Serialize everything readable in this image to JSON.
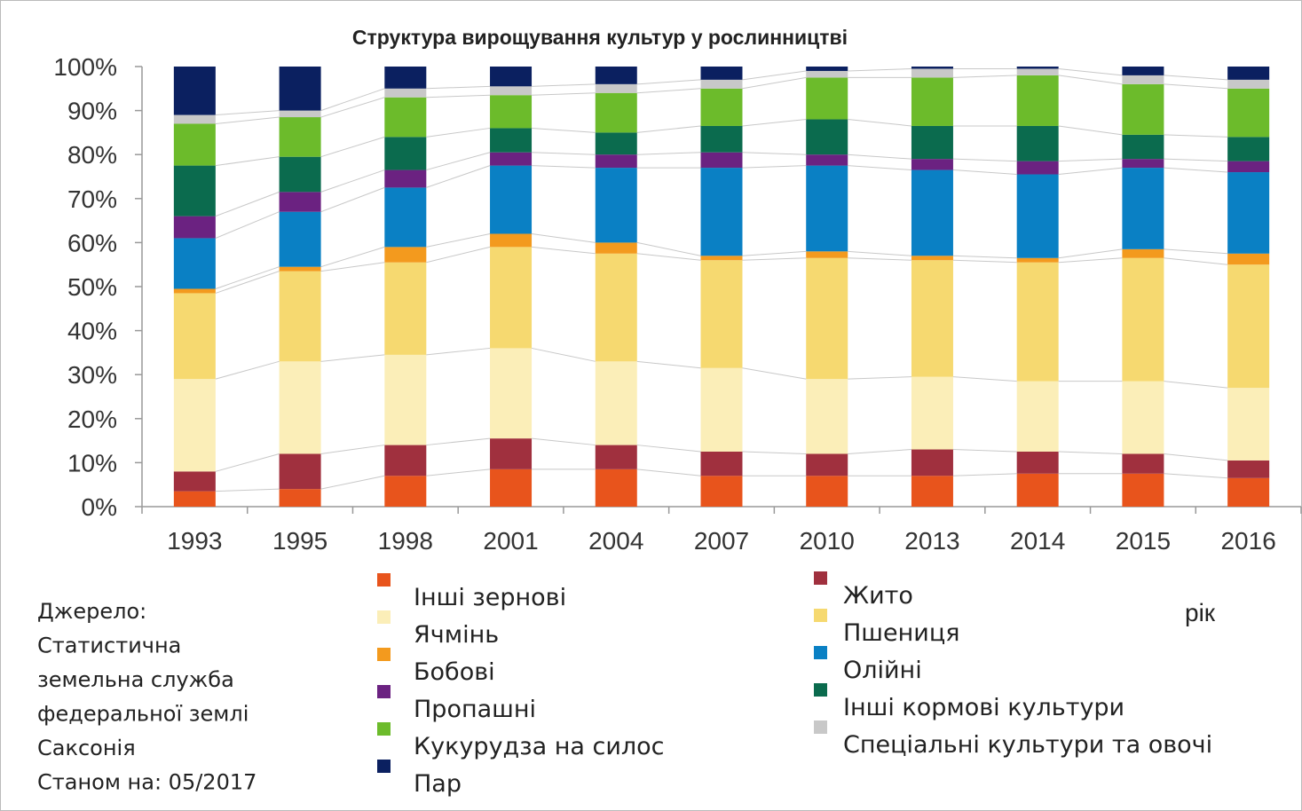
{
  "chart_data": {
    "type": "stacked_bar",
    "title": "Структура вирощування культур у рослинництві",
    "categories": [
      "1993",
      "1995",
      "1998",
      "2001",
      "2004",
      "2007",
      "2010",
      "2013",
      "2014",
      "2015",
      "2016"
    ],
    "series": [
      {
        "name": "Інші зернові",
        "color": "#e8541c",
        "values": [
          3.5,
          4,
          7,
          8.5,
          8.5,
          7,
          7,
          7,
          7.5,
          7.5,
          6.5
        ]
      },
      {
        "name": "Жито",
        "color": "#a0303e",
        "values": [
          4.5,
          8,
          7,
          7,
          5.5,
          5.5,
          5,
          6,
          5,
          4.5,
          4
        ]
      },
      {
        "name": "Ячмінь",
        "color": "#fbeeb8",
        "values": [
          21,
          21,
          20.5,
          20.5,
          19,
          19,
          17,
          16.5,
          16,
          16.5,
          16.5
        ]
      },
      {
        "name": "Пшениця",
        "color": "#f6d970",
        "values": [
          19.5,
          20.5,
          21,
          23,
          24.5,
          24.5,
          27.5,
          26.5,
          27,
          28,
          28
        ]
      },
      {
        "name": "Бобові",
        "color": "#f39a1e",
        "values": [
          1,
          1,
          3.5,
          3,
          2.5,
          1,
          1.5,
          1,
          1,
          2,
          2.5
        ]
      },
      {
        "name": "Олійні",
        "color": "#0a80c4",
        "values": [
          11.5,
          12.5,
          13.5,
          15.5,
          17,
          20,
          19.5,
          19.5,
          19,
          18.5,
          18.5
        ]
      },
      {
        "name": "Пропашні",
        "color": "#6b2281",
        "values": [
          5,
          4.5,
          4,
          3,
          3,
          3.5,
          2.5,
          2.5,
          3,
          2,
          2.5
        ]
      },
      {
        "name": "Інші кормові культури",
        "color": "#0b6b4e",
        "values": [
          11.5,
          8,
          7.5,
          5.5,
          5,
          6,
          8,
          7.5,
          8,
          5.5,
          5.5
        ]
      },
      {
        "name": "Кукурудза на силос",
        "color": "#6cbb2b",
        "values": [
          9.5,
          9,
          9,
          7.5,
          9,
          8.5,
          9.5,
          11,
          11.5,
          11.5,
          11
        ]
      },
      {
        "name": "Спеціальні культури та овочі",
        "color": "#c8c8c8",
        "values": [
          2,
          1.5,
          2,
          2,
          2,
          2,
          1.5,
          2,
          1.5,
          2,
          2
        ]
      },
      {
        "name": "Пар",
        "color": "#0b2060",
        "values": [
          11,
          10,
          5,
          4.5,
          4,
          3,
          1,
          0.5,
          0.5,
          2,
          3
        ]
      }
    ],
    "ylim": [
      0,
      100
    ],
    "yticks": [
      {
        "value": 0,
        "label": "0%"
      },
      {
        "value": 10,
        "label": "10%"
      },
      {
        "value": 20,
        "label": "20%"
      },
      {
        "value": 30,
        "label": "30%"
      },
      {
        "value": 40,
        "label": "40%"
      },
      {
        "value": 50,
        "label": "50%"
      },
      {
        "value": 60,
        "label": "60%"
      },
      {
        "value": 70,
        "label": "70%"
      },
      {
        "value": 80,
        "label": "80%"
      },
      {
        "value": 90,
        "label": "90%"
      },
      {
        "value": 100,
        "label": "100%"
      }
    ],
    "xlabel": "рік",
    "source": [
      "Джерело:",
      "Статистична",
      "земельна служба",
      "федеральної землі",
      "Саксонія",
      "Станом на: 05/2017"
    ]
  }
}
